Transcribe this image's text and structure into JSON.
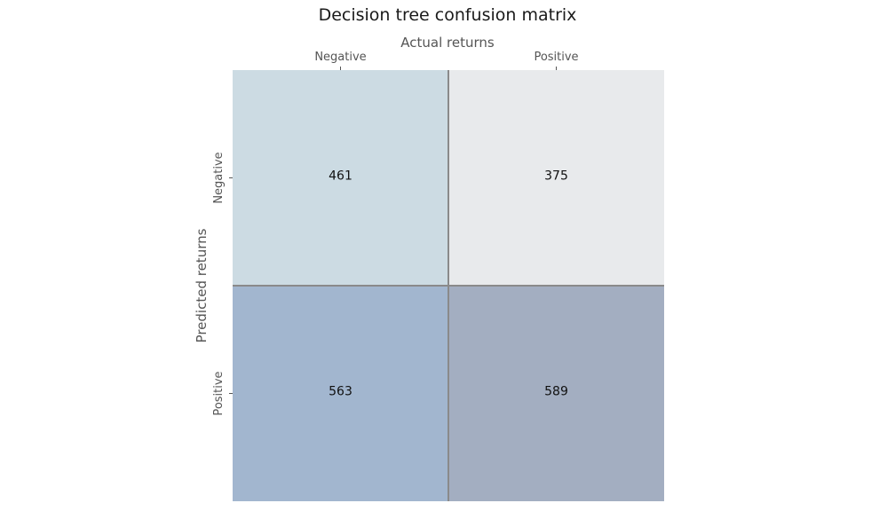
{
  "chart_data": {
    "type": "heatmap",
    "title": "Decision tree confusion matrix",
    "xlabel": "Actual returns",
    "ylabel": "Predicted returns",
    "x_categories": [
      "Negative",
      "Positive"
    ],
    "y_categories": [
      "Negative",
      "Positive"
    ],
    "values": [
      [
        461,
        375
      ],
      [
        563,
        589
      ]
    ],
    "cell_colors": [
      [
        "#ccdbe3",
        "#e8eaec"
      ],
      [
        "#a2b6cf",
        "#a3aec1"
      ]
    ],
    "x_axis_position": "top",
    "grid": false,
    "legend": "none",
    "gridline_color": "#8a8a8a"
  }
}
